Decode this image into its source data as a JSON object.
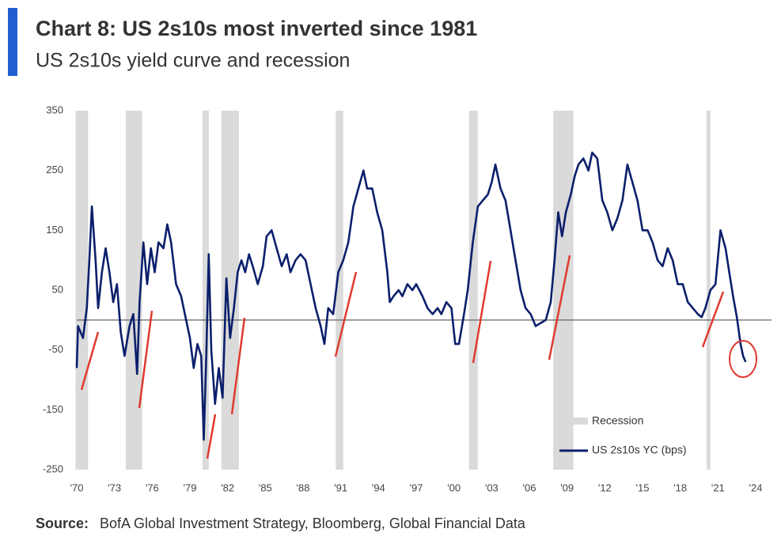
{
  "chart_data": {
    "type": "line",
    "title": "Chart 8: US 2s10s most inverted since 1981",
    "subtitle": "US 2s10s yield curve and recession",
    "source_label": "Source:",
    "source": "BofA Global Investment Strategy, Bloomberg, Global Financial Data",
    "recession_name": "Recession",
    "recession_color": "#dadada",
    "recessions": [
      [
        1969.9,
        1970.9
      ],
      [
        1973.9,
        1975.2
      ],
      [
        1980.0,
        1980.5
      ],
      [
        1981.5,
        1982.9
      ],
      [
        1990.6,
        1991.2
      ],
      [
        2001.2,
        2001.9
      ],
      [
        2007.9,
        2009.5
      ],
      [
        2020.1,
        2020.4
      ]
    ],
    "xlim": [
      1970,
      2024
    ],
    "xticks": [
      {
        "value": 1970,
        "label": "'70"
      },
      {
        "value": 1973,
        "label": "'73"
      },
      {
        "value": 1976,
        "label": "'76"
      },
      {
        "value": 1979,
        "label": "'79"
      },
      {
        "value": 1982,
        "label": "'82"
      },
      {
        "value": 1985,
        "label": "'85"
      },
      {
        "value": 1988,
        "label": "'88"
      },
      {
        "value": 1991,
        "label": "'91"
      },
      {
        "value": 1994,
        "label": "'94"
      },
      {
        "value": 1997,
        "label": "'97"
      },
      {
        "value": 2000,
        "label": "'00"
      },
      {
        "value": 2003,
        "label": "'03"
      },
      {
        "value": 2006,
        "label": "'06"
      },
      {
        "value": 2009,
        "label": "'09"
      },
      {
        "value": 2012,
        "label": "'12"
      },
      {
        "value": 2015,
        "label": "'15"
      },
      {
        "value": 2018,
        "label": "'18"
      },
      {
        "value": 2021,
        "label": "'21"
      },
      {
        "value": 2024,
        "label": "'24"
      }
    ],
    "ylim": [
      -250,
      350
    ],
    "yticks": [
      350,
      250,
      150,
      50,
      -50,
      -150,
      -250
    ],
    "x": [
      1970.0,
      1970.1,
      1970.5,
      1970.8,
      1971.0,
      1971.2,
      1971.5,
      1971.7,
      1972.0,
      1972.3,
      1972.6,
      1972.9,
      1973.2,
      1973.5,
      1973.8,
      1974.2,
      1974.5,
      1974.8,
      1975.0,
      1975.3,
      1975.6,
      1975.9,
      1976.2,
      1976.5,
      1976.9,
      1977.2,
      1977.5,
      1977.9,
      1978.3,
      1978.7,
      1979.0,
      1979.3,
      1979.6,
      1979.9,
      1980.1,
      1980.3,
      1980.5,
      1980.7,
      1981.0,
      1981.3,
      1981.6,
      1981.9,
      1982.2,
      1982.5,
      1982.8,
      1983.1,
      1983.4,
      1983.7,
      1984.0,
      1984.4,
      1984.8,
      1985.1,
      1985.5,
      1985.9,
      1986.3,
      1986.7,
      1987.0,
      1987.4,
      1987.8,
      1988.2,
      1988.6,
      1989.0,
      1989.4,
      1989.7,
      1990.0,
      1990.4,
      1990.8,
      1991.2,
      1991.6,
      1992.0,
      1992.4,
      1992.8,
      1993.1,
      1993.5,
      1993.9,
      1994.3,
      1994.7,
      1994.9,
      1995.2,
      1995.6,
      1995.9,
      1996.3,
      1996.7,
      1997.0,
      1997.5,
      1997.9,
      1998.3,
      1998.7,
      1999.0,
      1999.4,
      1999.8,
      2000.1,
      2000.4,
      2000.8,
      2001.1,
      2001.5,
      2001.9,
      2002.3,
      2002.7,
      2003.0,
      2003.3,
      2003.7,
      2004.1,
      2004.5,
      2004.9,
      2005.3,
      2005.7,
      2006.1,
      2006.5,
      2006.9,
      2007.3,
      2007.7,
      2008.0,
      2008.3,
      2008.6,
      2008.9,
      2009.3,
      2009.6,
      2009.9,
      2010.3,
      2010.7,
      2011.0,
      2011.4,
      2011.8,
      2012.2,
      2012.6,
      2013.0,
      2013.4,
      2013.8,
      2014.2,
      2014.6,
      2015.0,
      2015.4,
      2015.8,
      2016.2,
      2016.6,
      2017.0,
      2017.4,
      2017.8,
      2018.2,
      2018.6,
      2019.0,
      2019.4,
      2019.7,
      2020.0,
      2020.4,
      2020.8,
      2021.2,
      2021.6,
      2021.9,
      2022.2,
      2022.5,
      2022.8,
      2023.0,
      2023.2
    ],
    "series": [
      {
        "name": "US 2s10s YC (bps)",
        "color": "#0b1f6b",
        "values": [
          -80,
          -10,
          -30,
          20,
          100,
          190,
          100,
          20,
          80,
          120,
          80,
          30,
          60,
          -20,
          -60,
          -10,
          10,
          -90,
          30,
          130,
          60,
          120,
          80,
          130,
          120,
          160,
          130,
          60,
          40,
          0,
          -30,
          -80,
          -40,
          -60,
          -200,
          -60,
          110,
          -50,
          -140,
          -80,
          -130,
          70,
          -30,
          20,
          80,
          100,
          80,
          110,
          90,
          60,
          90,
          140,
          150,
          120,
          90,
          110,
          80,
          100,
          110,
          100,
          60,
          20,
          -10,
          -40,
          20,
          10,
          80,
          100,
          130,
          190,
          220,
          250,
          220,
          220,
          180,
          150,
          80,
          30,
          40,
          50,
          40,
          60,
          50,
          60,
          40,
          20,
          10,
          20,
          10,
          30,
          20,
          -40,
          -40,
          10,
          50,
          130,
          190,
          200,
          210,
          230,
          260,
          220,
          200,
          150,
          100,
          50,
          20,
          10,
          -10,
          -5,
          0,
          30,
          100,
          180,
          140,
          180,
          210,
          240,
          260,
          270,
          250,
          280,
          270,
          200,
          180,
          150,
          170,
          200,
          260,
          230,
          200,
          150,
          150,
          130,
          100,
          90,
          120,
          100,
          60,
          60,
          30,
          20,
          10,
          5,
          20,
          50,
          60,
          150,
          120,
          80,
          40,
          5,
          -40,
          -60,
          -70
        ]
      }
    ]
  }
}
